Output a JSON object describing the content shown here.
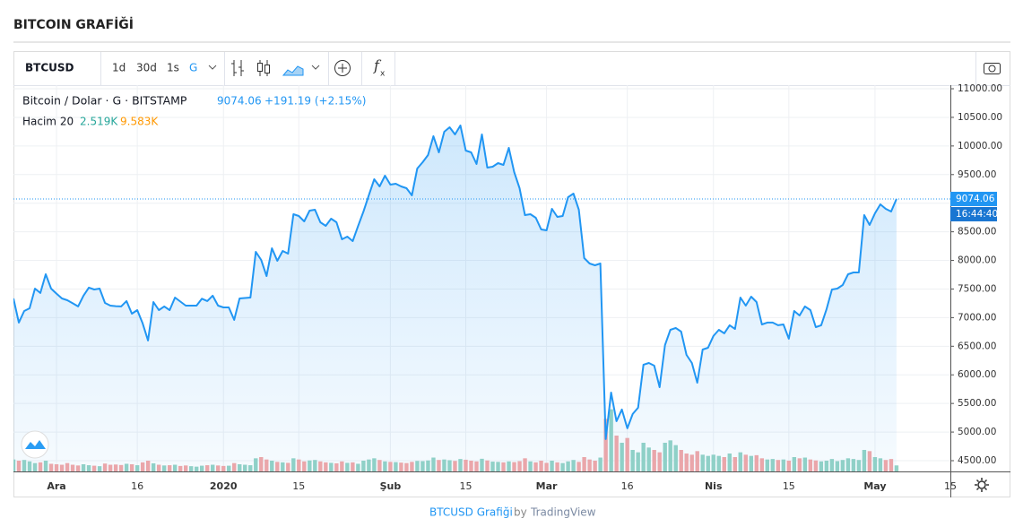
{
  "page_title": "BITCOIN GRAFİĞİ",
  "toolbar": {
    "symbol": "BTCUSD",
    "intervals": [
      "1d",
      "30d",
      "1s",
      "G"
    ],
    "function_icon": [
      "f",
      "x"
    ]
  },
  "footer": {
    "link": "BTCUSD Grafiği",
    "by": "by",
    "brand": "TradingView"
  },
  "chart_data": {
    "type": "line",
    "legend": {
      "instrument": "Bitcoin / Dolar · G · BITSTAMP",
      "change": "+191.19 (+2.15%)",
      "time": "16:44:40",
      "volume_label": "Hacim 20",
      "volume_value": "2.519K",
      "volume_ma": "9.583K"
    },
    "color": "#2196f3",
    "volume_up_color": "#94d3c5",
    "volume_down_color": "#f3a7a7",
    "categories": [
      null,
      null,
      null,
      null,
      null,
      null,
      null,
      null,
      "Ara",
      null,
      null,
      null,
      null,
      null,
      null,
      null,
      null,
      null,
      null,
      null,
      null,
      null,
      null,
      "16",
      null,
      null,
      null,
      null,
      null,
      null,
      null,
      null,
      null,
      null,
      null,
      null,
      null,
      null,
      null,
      "2020",
      null,
      null,
      null,
      null,
      null,
      null,
      null,
      null,
      null,
      null,
      null,
      null,
      null,
      "15",
      null,
      null,
      null,
      null,
      null,
      null,
      null,
      null,
      null,
      null,
      null,
      null,
      null,
      null,
      null,
      null,
      "Şub",
      null,
      null,
      null,
      null,
      null,
      null,
      null,
      null,
      null,
      null,
      null,
      null,
      null,
      "15",
      null,
      null,
      null,
      null,
      null,
      null,
      null,
      null,
      null,
      null,
      null,
      null,
      null,
      null,
      "Mar",
      null,
      null,
      null,
      null,
      null,
      null,
      null,
      null,
      null,
      null,
      null,
      null,
      null,
      null,
      "16",
      null,
      null,
      null,
      null,
      null,
      null,
      null,
      null,
      null,
      null,
      null,
      null,
      null,
      null,
      null,
      "Nis",
      null,
      null,
      null,
      null,
      null,
      null,
      null,
      null,
      null,
      null,
      null,
      null,
      null,
      "15",
      null,
      null,
      null,
      null,
      null,
      null,
      null,
      null,
      null,
      null,
      null,
      null,
      null,
      null,
      null,
      "May",
      null,
      null,
      null,
      null,
      null,
      null,
      null,
      null,
      null,
      null,
      null,
      null,
      null,
      "15"
    ],
    "values": [
      7335,
      6913,
      7116,
      7163,
      7508,
      7430,
      7758,
      7508,
      7420,
      7335,
      7304,
      7250,
      7195,
      7383,
      7524,
      7492,
      7508,
      7257,
      7210,
      7200,
      7195,
      7289,
      7069,
      7132,
      6900,
      6600,
      7273,
      7132,
      7195,
      7132,
      7351,
      7280,
      7210,
      7210,
      7210,
      7330,
      7289,
      7383,
      7210,
      7179,
      7179,
      6960,
      7335,
      7343,
      7351,
      8150,
      8009,
      7727,
      8212,
      7993,
      8165,
      8118,
      8807,
      8776,
      8682,
      8870,
      8886,
      8667,
      8604,
      8729,
      8667,
      8369,
      8416,
      8338,
      8600,
      8855,
      9140,
      9418,
      9293,
      9481,
      9324,
      9340,
      9293,
      9262,
      9137,
      9606,
      9716,
      9841,
      10170,
      9888,
      10248,
      10327,
      10201,
      10358,
      9919,
      9888,
      9685,
      10201,
      9622,
      9638,
      9700,
      9669,
      9966,
      9544,
      9262,
      8792,
      8807,
      8745,
      8541,
      8526,
      8901,
      8760,
      8776,
      9105,
      9168,
      8886,
      8040,
      7946,
      7915,
      7946,
      4877,
      5691,
      5190,
      5394,
      5065,
      5316,
      5425,
      6177,
      6208,
      6161,
      5785,
      6521,
      6787,
      6819,
      6756,
      6349,
      6208,
      5863,
      6443,
      6474,
      6678,
      6787,
      6725,
      6866,
      6803,
      7351,
      7210,
      7367,
      7273,
      6881,
      6913,
      6913,
      6866,
      6881,
      6631,
      7116,
      7038,
      7195,
      7132,
      6834,
      6866,
      7148,
      7492,
      7508,
      7570,
      7758,
      7790,
      7790,
      8792,
      8620,
      8823,
      8980,
      8901,
      8855,
      9074.06,
      null,
      null,
      null,
      null,
      null,
      null,
      null,
      null,
      null,
      null
    ],
    "volume": [
      5,
      4.5,
      4.8,
      4.2,
      3.5,
      3.8,
      4.5,
      3.2,
      3,
      2.8,
      3.5,
      2.8,
      2.5,
      3,
      2.6,
      2.4,
      2.2,
      3.3,
      2.8,
      2.9,
      2.7,
      3.2,
      3,
      2.6,
      3.8,
      4.5,
      3.4,
      2.8,
      2.5,
      2.6,
      2.8,
      2.3,
      2.5,
      2.2,
      2,
      2.4,
      2.6,
      2.8,
      2.5,
      2.3,
      2.4,
      3.5,
      3,
      2.8,
      2.6,
      5.5,
      6,
      5,
      4.5,
      4,
      3.8,
      3.6,
      5.5,
      5,
      4.2,
      4.6,
      4.8,
      4.2,
      3.8,
      3.6,
      3.4,
      4.2,
      3.6,
      3.8,
      3.2,
      4.5,
      5,
      5.5,
      4.8,
      4.2,
      4,
      3.9,
      3.7,
      3.5,
      4,
      4.4,
      4.3,
      4.6,
      5.8,
      4.8,
      5,
      4.7,
      4.4,
      5.2,
      4.9,
      4.5,
      4.2,
      5.3,
      4.6,
      4.1,
      4,
      3.8,
      4.2,
      3.9,
      4.3,
      5.5,
      4.2,
      3.8,
      4.5,
      3.6,
      4.5,
      3.8,
      3.5,
      4.2,
      4.8,
      4,
      6,
      5,
      4.5,
      5.8,
      22,
      26,
      15,
      12,
      14,
      9,
      8,
      12,
      10,
      9,
      8,
      12,
      13,
      11,
      9,
      7.5,
      7,
      8.5,
      7,
      6.5,
      7,
      6.5,
      6,
      7.5,
      6,
      8,
      7,
      6.5,
      6.8,
      5.5,
      5,
      5.2,
      4.8,
      5,
      4.5,
      6,
      5.5,
      5.8,
      5,
      4.6,
      4.2,
      4.5,
      5.2,
      4.3,
      4.8,
      5.5,
      5.2,
      4.8,
      9,
      8.5,
      6,
      5.5,
      4.8,
      5.2,
      2.519,
      null,
      null,
      null,
      null,
      null,
      null,
      null,
      null,
      null,
      null
    ],
    "volume_ylim": [
      0,
      60
    ],
    "ylim": [
      4312,
      11063
    ],
    "yticks": [
      {
        "value": 4500,
        "label": "4500.00"
      },
      {
        "value": 5000,
        "label": "5000.00"
      },
      {
        "value": 5500,
        "label": "5500.00"
      },
      {
        "value": 6000,
        "label": "6000.00"
      },
      {
        "value": 6500,
        "label": "6500.00"
      },
      {
        "value": 7000,
        "label": "7000.00"
      },
      {
        "value": 7500,
        "label": "7500.00"
      },
      {
        "value": 8000,
        "label": "8000.00"
      },
      {
        "value": 8500,
        "label": "8500.00"
      },
      {
        "value": 9000,
        "label": "9000.00"
      },
      {
        "value": 9500,
        "label": "9500.00"
      },
      {
        "value": 10000,
        "label": "10000.00"
      },
      {
        "value": 10500,
        "label": "10500.00"
      },
      {
        "value": 11000,
        "label": "11000.00"
      }
    ],
    "grid": true
  }
}
